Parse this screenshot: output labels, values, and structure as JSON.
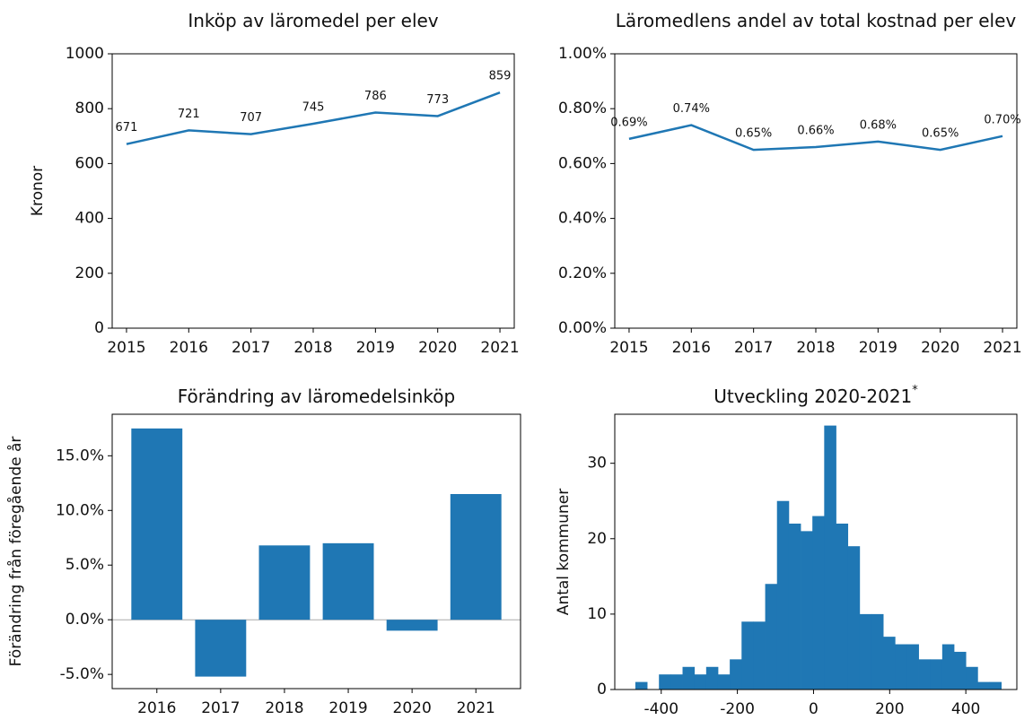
{
  "chart_data": [
    {
      "type": "line",
      "title": "Inköp av läromedel per elev",
      "y_label": "Kronor",
      "categories": [
        "2015",
        "2016",
        "2017",
        "2018",
        "2019",
        "2020",
        "2021"
      ],
      "values": [
        671,
        721,
        707,
        745,
        786,
        773,
        859
      ],
      "color": "#1f77b4",
      "data_labels": true,
      "ylim": [
        0,
        1000
      ],
      "yticks": [
        0,
        200,
        400,
        600,
        800,
        1000
      ]
    },
    {
      "type": "line",
      "title": "Läromedlens andel av total kostnad per elev",
      "categories": [
        "2015",
        "2016",
        "2017",
        "2018",
        "2019",
        "2020",
        "2021"
      ],
      "values": [
        0.69,
        0.74,
        0.65,
        0.66,
        0.68,
        0.65,
        0.7
      ],
      "value_labels": [
        "0.69%",
        "0.74%",
        "0.65%",
        "0.66%",
        "0.68%",
        "0.65%",
        "0.70%"
      ],
      "color": "#1f77b4",
      "data_labels": true,
      "ylim": [
        0,
        1
      ],
      "yticks": [
        {
          "value": 0,
          "label": "0.00%"
        },
        {
          "value": 0.2,
          "label": "0.20%"
        },
        {
          "value": 0.4,
          "label": "0.40%"
        },
        {
          "value": 0.6,
          "label": "0.60%"
        },
        {
          "value": 0.8,
          "label": "0.80%"
        },
        {
          "value": 1,
          "label": "1.00%"
        }
      ]
    },
    {
      "type": "bar",
      "title": "Förändring av läromedelsinköp",
      "y_label": "Förändring från föregående år",
      "categories": [
        "2016",
        "2017",
        "2018",
        "2019",
        "2020",
        "2021"
      ],
      "values": [
        17.5,
        -5.2,
        6.8,
        7.0,
        -1.0,
        11.5
      ],
      "color": "#1f77b4",
      "zero_line": true,
      "ylim": [
        -6.3,
        18.8
      ],
      "yticks": [
        {
          "value": -5,
          "label": "-5.0%"
        },
        {
          "value": 0,
          "label": "0.0%"
        },
        {
          "value": 5,
          "label": "5.0%"
        },
        {
          "value": 10,
          "label": "10.0%"
        },
        {
          "value": 15,
          "label": "15.0%"
        }
      ]
    },
    {
      "type": "histogram",
      "title": "Utveckling 2020-2021",
      "title_mark": "*",
      "y_label": "Antal kommuner",
      "bins": [
        -468,
        -437,
        -406,
        -375,
        -344,
        -313,
        -282,
        -251,
        -220,
        -189,
        -158,
        -127,
        -96,
        -65,
        -34,
        -3,
        28,
        59,
        90,
        121,
        152,
        183,
        214,
        245,
        276,
        307,
        338,
        369,
        400,
        431,
        462,
        493
      ],
      "values": [
        1,
        0,
        2,
        2,
        3,
        2,
        3,
        2,
        4,
        9,
        9,
        14,
        25,
        22,
        21,
        23,
        35,
        22,
        19,
        10,
        10,
        7,
        6,
        6,
        4,
        4,
        6,
        5,
        3,
        1,
        1
      ],
      "color": "#1f77b4",
      "xlim": [
        -522,
        534
      ],
      "xticks": [
        -400,
        -200,
        0,
        200,
        400
      ],
      "ylim": [
        0,
        36.5
      ],
      "yticks": [
        0,
        10,
        20,
        30
      ]
    }
  ]
}
